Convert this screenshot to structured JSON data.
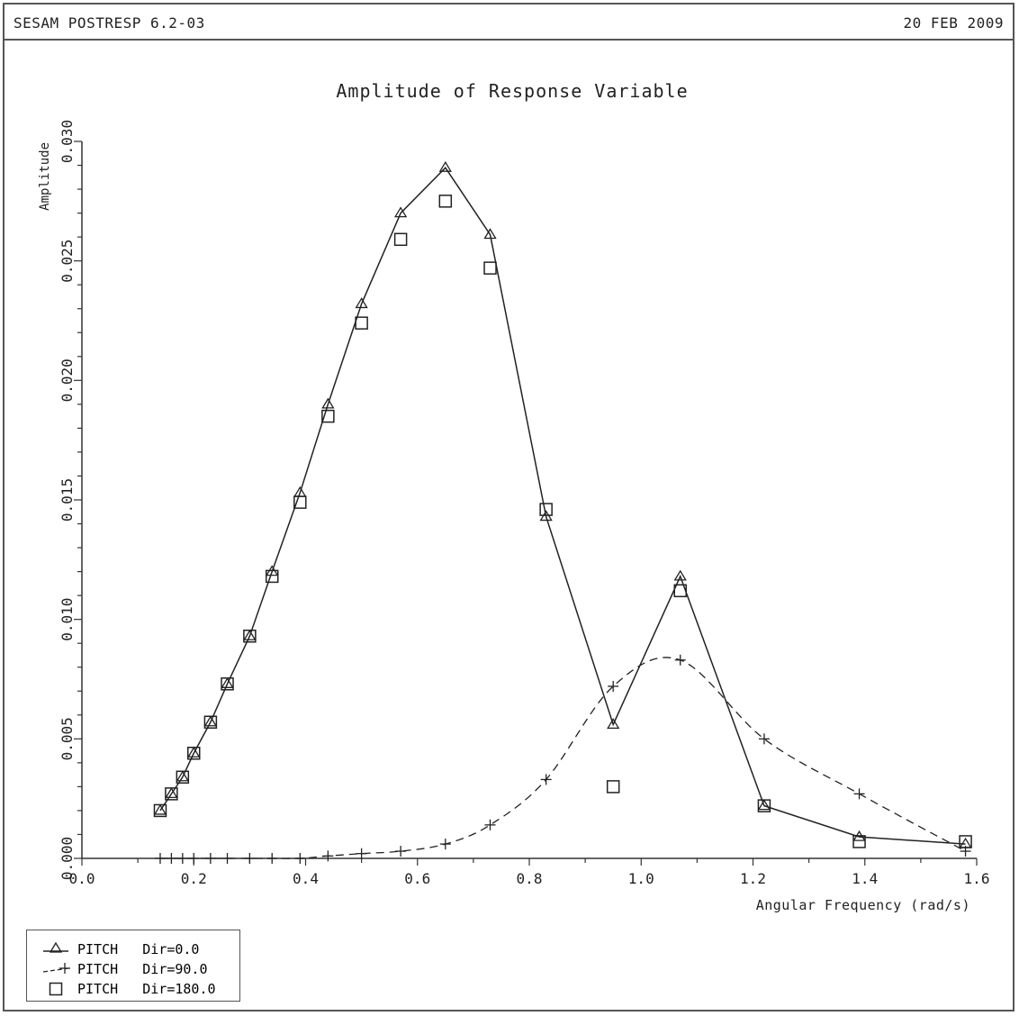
{
  "header": {
    "program": "SESAM POSTRESP 6.2-03",
    "date": "20 FEB 2009"
  },
  "chart_data": {
    "type": "line",
    "title": "Amplitude of Response Variable",
    "xlabel": "Angular Frequency (rad/s)",
    "ylabel": "Amplitude",
    "xlim": [
      0.0,
      1.6
    ],
    "ylim": [
      0.0,
      0.03
    ],
    "x_ticks": [
      "0.0",
      "0.2",
      "0.4",
      "0.6",
      "0.8",
      "1.0",
      "1.2",
      "1.4",
      "1.6"
    ],
    "y_ticks": [
      "0.000",
      "0.005",
      "0.010",
      "0.015",
      "0.020",
      "0.025",
      "0.030"
    ],
    "x": [
      0.14,
      0.16,
      0.18,
      0.2,
      0.23,
      0.26,
      0.3,
      0.34,
      0.39,
      0.44,
      0.5,
      0.57,
      0.65,
      0.73,
      0.83,
      0.95,
      1.07,
      1.22,
      1.39,
      1.58
    ],
    "series": [
      {
        "name": "PITCH   Dir=0.0",
        "marker": "triangle",
        "line": "solid",
        "values": [
          0.002,
          0.0027,
          0.0034,
          0.0044,
          0.0057,
          0.0073,
          0.0093,
          0.012,
          0.0153,
          0.019,
          0.0232,
          0.027,
          0.0289,
          0.0261,
          0.0143,
          0.0056,
          0.0118,
          0.0022,
          0.0009,
          0.0006
        ]
      },
      {
        "name": "PITCH   Dir=90.0",
        "marker": "plus",
        "line": "dashed",
        "values": [
          0.0,
          0.0,
          0.0,
          0.0,
          0.0,
          0.0,
          0.0,
          0.0,
          0.0,
          0.0001,
          0.0002,
          0.0003,
          0.0006,
          0.0014,
          0.0033,
          0.0072,
          0.0083,
          0.005,
          0.0027,
          0.0003
        ]
      },
      {
        "name": "PITCH   Dir=180.0",
        "marker": "square",
        "line": "none",
        "values": [
          0.002,
          0.0027,
          0.0034,
          0.0044,
          0.0057,
          0.0073,
          0.0093,
          0.0118,
          0.0149,
          0.0185,
          0.0224,
          0.0259,
          0.0275,
          0.0247,
          0.0146,
          0.003,
          0.0112,
          0.0022,
          0.0007,
          0.0007
        ]
      }
    ],
    "legend_position": "bottom-left",
    "grid": false
  }
}
